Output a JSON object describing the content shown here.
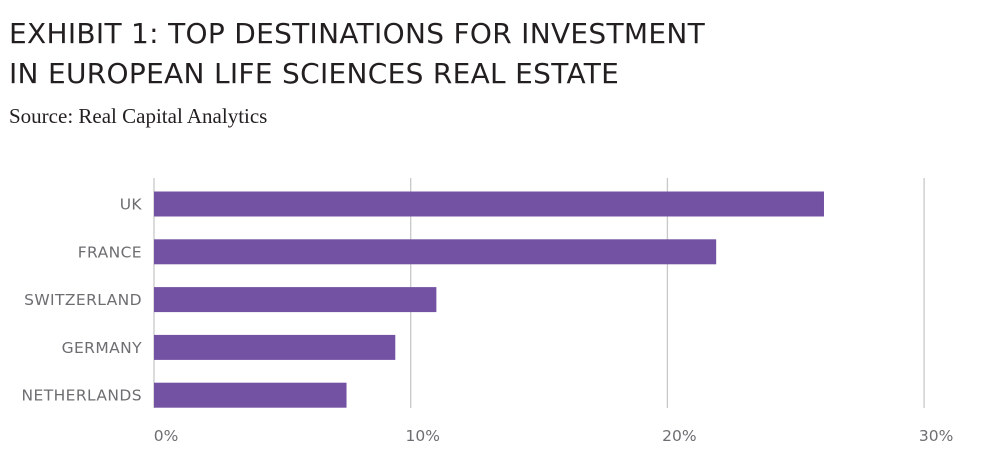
{
  "header": {
    "title_line1": "EXHIBIT 1: TOP DESTINATIONS FOR INVESTMENT",
    "title_line2": "IN EUROPEAN LIFE SCIENCES REAL ESTATE",
    "subtitle": "Source: Real Capital Analytics"
  },
  "colors": {
    "bar": "#7452a3",
    "gridline": "#c8c8c8",
    "axis_text": "#6d6e71",
    "title_text": "#231f20"
  },
  "chart_data": {
    "type": "bar",
    "orientation": "horizontal",
    "title": "EXHIBIT 1: TOP DESTINATIONS FOR INVESTMENT IN EUROPEAN LIFE SCIENCES REAL ESTATE",
    "subtitle": "Source: Real Capital Analytics",
    "categories": [
      "UK",
      "FRANCE",
      "SWITZERLAND",
      "GERMANY",
      "NETHERLANDS"
    ],
    "values": [
      26.1,
      21.9,
      11.0,
      9.4,
      7.5
    ],
    "xlim": [
      0,
      30
    ],
    "x_ticks": [
      0,
      10,
      20,
      30
    ],
    "x_tick_labels": [
      "0%",
      "10%",
      "20%",
      "30%"
    ],
    "xlabel": "",
    "ylabel": "",
    "grid": "vertical",
    "legend": "none"
  }
}
